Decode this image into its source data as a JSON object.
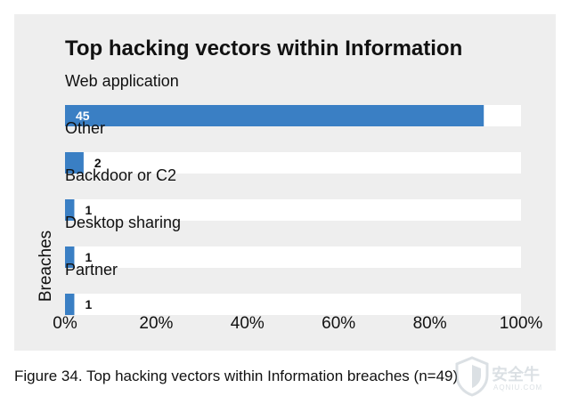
{
  "chart_data": {
    "type": "bar",
    "orientation": "horizontal",
    "title": "Top hacking vectors within Information",
    "ylabel": "Breaches",
    "xlabel": "",
    "categories": [
      "Web application",
      "Other",
      "Backdoor or C2",
      "Desktop sharing",
      "Partner"
    ],
    "values": [
      45,
      2,
      1,
      1,
      1
    ],
    "data_labels": [
      "45",
      "2",
      "1",
      "1",
      "1"
    ],
    "total": 49,
    "xlim": [
      0,
      100
    ],
    "xticks": [
      "0%",
      "20%",
      "40%",
      "60%",
      "80%",
      "100%"
    ],
    "bar_color": "#3a7fc4",
    "track_color": "#ffffff",
    "grid": false,
    "legend": "none"
  },
  "caption": "Figure 34. Top hacking vectors within Information breaches (n=49)",
  "watermark": {
    "text": "安全牛",
    "subtext": "AQNIU.COM",
    "icon": "shield-logo-icon"
  }
}
